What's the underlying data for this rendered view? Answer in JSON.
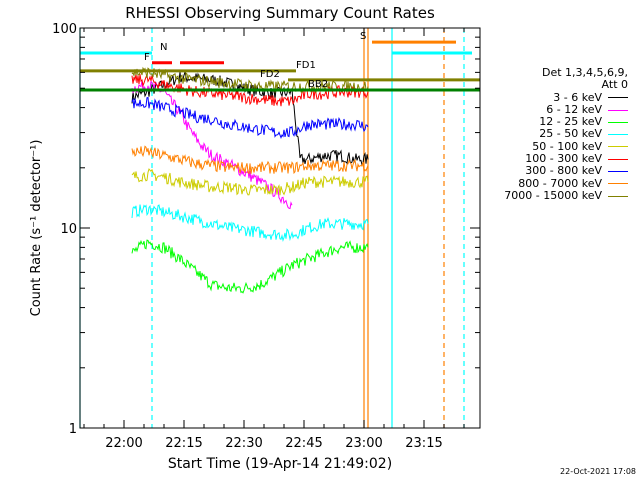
{
  "chart_data": {
    "type": "line",
    "title": "RHESSI Observing Summary Count Rates",
    "xlabel": "Start Time (19-Apr-14 21:49:02)",
    "ylabel": "Count Rate (s⁻¹ detector⁻¹)",
    "y_scale": "log",
    "ylim": [
      1,
      100
    ],
    "xlim": [
      "21:49",
      "23:29"
    ],
    "x_tick_labels": [
      "22:00",
      "22:15",
      "22:30",
      "22:45",
      "23:00",
      "23:15"
    ],
    "y_tick_labels": [
      "1",
      "10",
      "100"
    ],
    "legend_placement": "right",
    "legend_header": [
      "Det 1,3,4,5,6,9,",
      "Att 0"
    ],
    "series": [
      {
        "name": "3 - 6 keV",
        "color": "#000000",
        "x": [
          "22:02",
          "22:06",
          "22:10",
          "22:14",
          "22:18",
          "22:22",
          "22:26",
          "22:30",
          "22:34",
          "22:38",
          "22:42",
          "22:44",
          "22:46",
          "22:50",
          "22:54",
          "22:58",
          "23:01"
        ],
        "y": [
          45,
          48,
          52,
          57,
          56,
          55,
          53,
          50,
          48,
          47,
          48,
          22,
          22,
          23,
          23,
          22,
          22
        ]
      },
      {
        "name": "6 - 12 keV",
        "color": "#ff00ff",
        "x": [
          "22:02",
          "22:06",
          "22:10",
          "22:12",
          "22:14",
          "22:16",
          "22:18",
          "22:20",
          "22:22",
          "22:24",
          "22:26",
          "22:28",
          "22:30",
          "22:32",
          "22:34",
          "22:36",
          "22:38",
          "22:40",
          "22:42"
        ],
        "y": [
          50,
          52,
          48,
          42,
          38,
          32,
          28,
          25,
          23,
          22,
          21,
          20,
          19,
          18,
          17,
          16,
          15,
          14,
          13
        ]
      },
      {
        "name": "12 - 25 keV",
        "color": "#00ff00",
        "x": [
          "22:02",
          "22:06",
          "22:10",
          "22:14",
          "22:18",
          "22:22",
          "22:26",
          "22:30",
          "22:34",
          "22:38",
          "22:42",
          "22:46",
          "22:50",
          "22:54",
          "22:58",
          "23:01"
        ],
        "y": [
          7.5,
          8.5,
          8.0,
          7.0,
          6.0,
          5.2,
          5.0,
          5.0,
          5.2,
          5.8,
          6.5,
          7.0,
          7.5,
          8.0,
          8.0,
          8.0
        ]
      },
      {
        "name": "25 - 50 keV",
        "color": "#00ffff",
        "x": [
          "22:02",
          "22:06",
          "22:10",
          "22:14",
          "22:18",
          "22:22",
          "22:26",
          "22:30",
          "22:34",
          "22:38",
          "22:42",
          "22:46",
          "22:50",
          "22:54",
          "22:58",
          "23:01"
        ],
        "y": [
          12,
          12.5,
          12,
          11.5,
          11,
          10.5,
          10,
          9.8,
          9.5,
          9.3,
          9.2,
          10,
          10.5,
          10.5,
          10.5,
          10.5
        ]
      },
      {
        "name": "50 - 100 keV",
        "color": "#cccc00",
        "x": [
          "22:02",
          "22:06",
          "22:10",
          "22:14",
          "22:18",
          "22:22",
          "22:26",
          "22:30",
          "22:34",
          "22:38",
          "22:42",
          "22:46",
          "22:50",
          "22:54",
          "22:58",
          "23:01"
        ],
        "y": [
          18,
          18.5,
          18,
          17,
          16.5,
          16,
          16,
          15.5,
          15.5,
          15.5,
          16,
          17,
          17,
          17,
          17,
          17
        ]
      },
      {
        "name": "100 - 300 keV",
        "color": "#ff0000",
        "x": [
          "22:02",
          "22:06",
          "22:10",
          "22:14",
          "22:18",
          "22:22",
          "22:26",
          "22:30",
          "22:34",
          "22:38",
          "22:42",
          "22:46",
          "22:50",
          "22:54",
          "22:58",
          "23:01"
        ],
        "y": [
          55,
          55,
          52,
          50,
          48,
          47,
          46,
          45,
          44,
          43,
          43,
          47,
          47,
          48,
          48,
          48
        ]
      },
      {
        "name": "300 - 800 keV",
        "color": "#0000ff",
        "x": [
          "22:02",
          "22:06",
          "22:10",
          "22:14",
          "22:18",
          "22:22",
          "22:26",
          "22:30",
          "22:34",
          "22:38",
          "22:42",
          "22:46",
          "22:50",
          "22:54",
          "22:58",
          "23:01"
        ],
        "y": [
          42,
          42,
          40,
          38,
          36,
          35,
          33,
          32,
          31,
          30,
          30,
          33,
          33,
          33,
          33,
          32
        ]
      },
      {
        "name": "800 - 7000 keV",
        "color": "#ff8000",
        "x": [
          "22:02",
          "22:06",
          "22:10",
          "22:14",
          "22:18",
          "22:22",
          "22:26",
          "22:30",
          "22:34",
          "22:38",
          "22:42",
          "22:46",
          "22:50",
          "22:54",
          "22:58",
          "23:01"
        ],
        "y": [
          24,
          24,
          23,
          22,
          21,
          20.5,
          20,
          20,
          20,
          20,
          20,
          20.5,
          20.5,
          20.5,
          20.5,
          20.5
        ]
      },
      {
        "name": "7000 - 15000 keV",
        "color": "#808000",
        "x": [
          "22:02",
          "22:06",
          "22:10",
          "22:14",
          "22:18",
          "22:22",
          "22:26",
          "22:30",
          "22:34",
          "22:38",
          "22:42",
          "22:46",
          "22:50",
          "22:54",
          "22:58",
          "23:01"
        ],
        "y": [
          60,
          60,
          58,
          56,
          55,
          54,
          53,
          52,
          51,
          51,
          51,
          51,
          51,
          51,
          51,
          51
        ]
      }
    ],
    "flag_bars": [
      {
        "label": "N",
        "color": "#00ffff",
        "y": 75,
        "from": "21:49",
        "to": "22:07",
        "label_at": "22:09"
      },
      {
        "label": "",
        "color": "#00ffff",
        "y": 75,
        "from": "23:07",
        "to": "23:27",
        "label_at": ""
      },
      {
        "label": "S",
        "color": "#ff8000",
        "y": 85,
        "from": "23:02",
        "to": "23:23",
        "label_at": "22:59"
      },
      {
        "label": "F",
        "color": "#ff0000",
        "y": 67,
        "from": "22:07",
        "to": "22:12",
        "label_at": "22:05"
      },
      {
        "label": "",
        "color": "#ff0000",
        "y": 67,
        "from": "22:14",
        "to": "22:25",
        "label_at": ""
      },
      {
        "label": "FD1",
        "color": "#808000",
        "y": 61,
        "from": "21:49",
        "to": "22:43",
        "label_at": "22:43"
      },
      {
        "label": "FD2",
        "color": "#808000",
        "y": 55,
        "from": "22:41",
        "to": "23:29",
        "label_at": "22:34"
      },
      {
        "label": "BB2",
        "color": "#008000",
        "y": 49,
        "from": "21:49",
        "to": "23:29",
        "label_at": "22:46"
      }
    ],
    "vertical_markers": [
      {
        "x": "21:49",
        "color": "#00ffff",
        "style": "solid"
      },
      {
        "x": "22:07",
        "color": "#00ffff",
        "style": "dashed"
      },
      {
        "x": "23:00",
        "color": "#ff8000",
        "style": "solid"
      },
      {
        "x": "23:01",
        "color": "#ff8000",
        "style": "solid"
      },
      {
        "x": "23:07",
        "color": "#00ffff",
        "style": "solid"
      },
      {
        "x": "23:20",
        "color": "#ff8000",
        "style": "dashed"
      },
      {
        "x": "23:25",
        "color": "#00ffff",
        "style": "dashed"
      }
    ]
  },
  "timestamp": "22-Oct-2021 17:08"
}
